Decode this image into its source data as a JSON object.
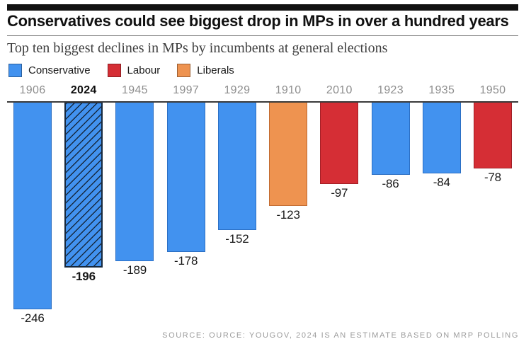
{
  "header": {
    "title": "Conservatives could see biggest drop in MPs in over a hundred years",
    "subtitle": "Top ten biggest declines in MPs by incumbents at general elections"
  },
  "legend": [
    {
      "label": "Conservative",
      "color": "#4292ef"
    },
    {
      "label": "Labour",
      "color": "#d52e35"
    },
    {
      "label": "Liberals",
      "color": "#ee9350"
    }
  ],
  "chart_data": {
    "type": "bar",
    "title": "Top ten biggest declines in MPs by incumbents at general elections",
    "categories": [
      "1906",
      "2024",
      "1945",
      "1997",
      "1929",
      "1910",
      "2010",
      "1923",
      "1935",
      "1950"
    ],
    "values": [
      -246,
      -196,
      -189,
      -178,
      -152,
      -123,
      -97,
      -86,
      -84,
      -78
    ],
    "parties": [
      "Conservative",
      "Conservative",
      "Conservative",
      "Conservative",
      "Conservative",
      "Liberals",
      "Labour",
      "Conservative",
      "Conservative",
      "Labour"
    ],
    "colors": {
      "Conservative": "#4292ef",
      "Labour": "#d52e35",
      "Liberals": "#ee9350"
    },
    "border_colors": {
      "Conservative": "#2b6fc4",
      "Labour": "#a21f26",
      "Liberals": "#c06a30"
    },
    "emphasized_index": 1,
    "ylim": [
      -250,
      0
    ],
    "legend_position": "top-left",
    "grid": false
  },
  "source": "SOURCE: OURCE: YOUGOV, 2024 IS AN ESTIMATE BASED ON MRP POLLING"
}
